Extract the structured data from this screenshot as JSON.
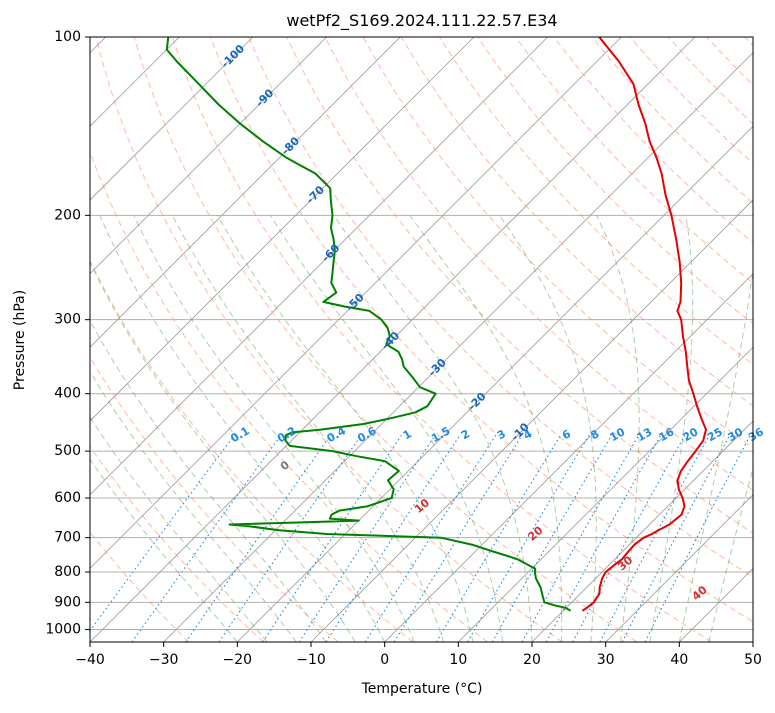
{
  "chart_data": {
    "type": "line",
    "title": "wetPf2_S169.2024.111.22.57.E34",
    "xlabel": "Temperature (°C)",
    "ylabel": "Pressure (hPa)",
    "xlim": [
      -40,
      50
    ],
    "ylim": [
      1050,
      100
    ],
    "yscale": "log",
    "grid": true,
    "skew_t": true,
    "x_ticks": [
      "−40",
      "−30",
      "−20",
      "−10",
      "0",
      "10",
      "20",
      "30",
      "40",
      "50"
    ],
    "x_tick_values": [
      -40,
      -30,
      -20,
      -10,
      0,
      10,
      20,
      30,
      40,
      50
    ],
    "y_ticks": [
      "100",
      "200",
      "300",
      "400",
      "500",
      "600",
      "700",
      "800",
      "900",
      "1000"
    ],
    "y_tick_values": [
      100,
      200,
      300,
      400,
      500,
      600,
      700,
      800,
      900,
      1000
    ],
    "colors": {
      "temperature": "#e60000",
      "dewpoint": "#008000",
      "isotherm": "#999999",
      "dry_adiabat": "#ff8a65",
      "moist_adiabat": "#5aa05a",
      "mixing_ratio": "#1e88e5",
      "skewed_isotherm_label": "#1565c0",
      "moist_adiabat_label": "#d32f2f",
      "zero_label": "#777777"
    },
    "series": [
      {
        "name": "",
        "role": "temperature",
        "color": "#e60000",
        "p": [
          930,
          920,
          900,
          870,
          850,
          820,
          800,
          780,
          760,
          740,
          720,
          700,
          690,
          680,
          665,
          640,
          620,
          600,
          580,
          560,
          540,
          520,
          500,
          480,
          460,
          440,
          420,
          400,
          380,
          360,
          340,
          320,
          300,
          290,
          280,
          260,
          240,
          220,
          200,
          185,
          170,
          160,
          150,
          140,
          130,
          120,
          110,
          100
        ],
        "t": [
          22.6,
          22.8,
          23.0,
          22.6,
          21.8,
          20.9,
          20.5,
          20.7,
          21.0,
          20.8,
          20.7,
          21.0,
          21.6,
          22.0,
          22.7,
          23.0,
          22.3,
          20.9,
          19.2,
          17.8,
          17.0,
          16.6,
          16.3,
          15.9,
          14.8,
          12.6,
          10.4,
          8.2,
          5.8,
          3.7,
          1.5,
          -1.0,
          -3.5,
          -5.2,
          -6.0,
          -8.5,
          -11.5,
          -15.0,
          -19.0,
          -22.5,
          -26.0,
          -28.8,
          -32.0,
          -35.0,
          -38.5,
          -42.0,
          -47.0,
          -53.0
        ]
      },
      {
        "name": "",
        "role": "dewpoint",
        "color": "#008000",
        "p": [
          930,
          920,
          910,
          900,
          880,
          850,
          820,
          800,
          790,
          760,
          740,
          720,
          700,
          690,
          680,
          670,
          665,
          660,
          655,
          650,
          640,
          630,
          620,
          600,
          580,
          560,
          540,
          520,
          510,
          500,
          490,
          480,
          470,
          465,
          460,
          450,
          440,
          430,
          420,
          400,
          390,
          375,
          360,
          350,
          340,
          330,
          320,
          310,
          300,
          290,
          285,
          280,
          270,
          260,
          250,
          240,
          230,
          220,
          210,
          200,
          190,
          180,
          170,
          165,
          160,
          150,
          140,
          130,
          120,
          110,
          105,
          100
        ],
        "t": [
          21.0,
          20.0,
          18.0,
          16.3,
          15.3,
          13.8,
          11.9,
          10.9,
          10.5,
          6.6,
          2.7,
          -1.2,
          -6.5,
          -22.5,
          -29.5,
          -34.0,
          -37.0,
          -28.0,
          -20.0,
          -24.2,
          -24.5,
          -24.0,
          -20.8,
          -18.6,
          -19.5,
          -21.5,
          -21.3,
          -24.5,
          -29.0,
          -33.0,
          -39.5,
          -40.8,
          -41.5,
          -41.0,
          -37.5,
          -32.5,
          -29.5,
          -27.0,
          -26.2,
          -26.8,
          -29.8,
          -32.2,
          -34.8,
          -36.0,
          -37.5,
          -40.2,
          -40.8,
          -42.2,
          -44.2,
          -47.0,
          -51.0,
          -54.5,
          -54.0,
          -56.0,
          -57.2,
          -58.5,
          -59.8,
          -61.5,
          -63.5,
          -65.0,
          -67.0,
          -69.0,
          -73.0,
          -76.0,
          -79.0,
          -84.5,
          -90.0,
          -95.5,
          -101.0,
          -107.0,
          -110.0,
          -111.5
        ]
      }
    ],
    "skewed_isotherm_labels": [
      "-100",
      "-90",
      "-80",
      "-70",
      "-60",
      "-50",
      "-40",
      "-30",
      "-20",
      "-10"
    ],
    "skewed_isotherm_label_values": [
      -100,
      -90,
      -80,
      -70,
      -60,
      -50,
      -40,
      -30,
      -20,
      -10
    ],
    "mixing_ratio_labels": [
      "0.1",
      "0.2",
      "0.4",
      "0.6",
      "1",
      "1.5",
      "2",
      "3",
      "4",
      "6",
      "8",
      "10",
      "13",
      "16",
      "20",
      "25",
      "30",
      "36"
    ],
    "mixing_ratio_values": [
      0.1,
      0.2,
      0.4,
      0.6,
      1,
      1.5,
      2,
      3,
      4,
      6,
      8,
      10,
      13,
      16,
      20,
      25,
      30,
      36
    ],
    "moist_adiabat_labels": [
      "0",
      "10",
      "20",
      "30",
      "40"
    ],
    "moist_adiabat_label_values": [
      0,
      10,
      20,
      30,
      40
    ]
  }
}
